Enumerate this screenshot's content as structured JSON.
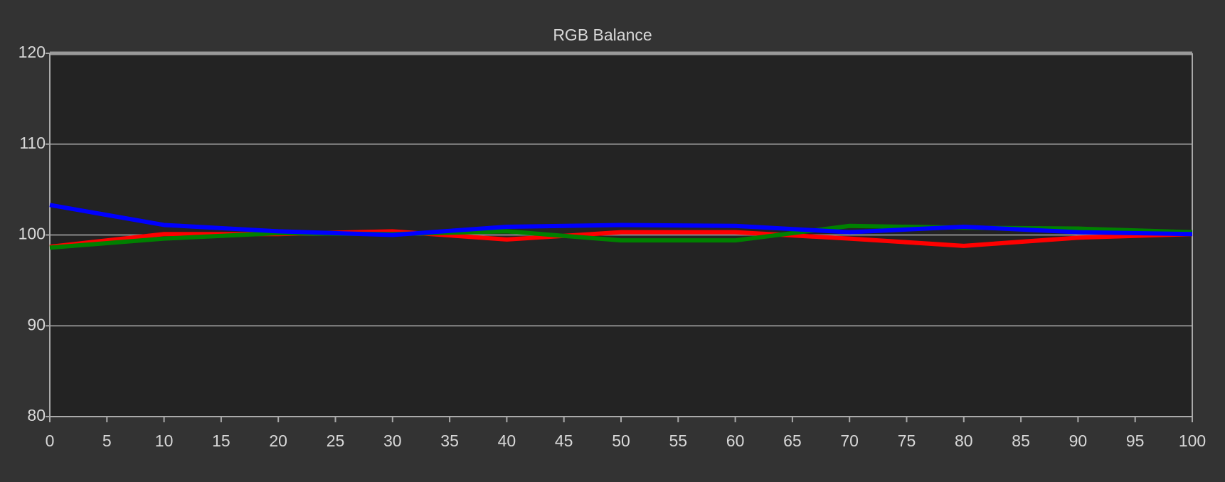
{
  "chart_data": {
    "type": "line",
    "title": "RGB Balance",
    "x": [
      0,
      10,
      20,
      30,
      40,
      50,
      60,
      70,
      80,
      90,
      100
    ],
    "series": [
      {
        "name": "Red",
        "color": "#ff0000",
        "values": [
          98.7,
          100.1,
          100.1,
          100.4,
          99.5,
          100.3,
          100.3,
          99.6,
          98.8,
          99.7,
          100.1
        ]
      },
      {
        "name": "Green",
        "color": "#008000",
        "values": [
          98.6,
          99.6,
          100.2,
          100.1,
          100.4,
          99.4,
          99.4,
          101.0,
          100.8,
          100.7,
          100.3
        ]
      },
      {
        "name": "Blue",
        "color": "#0000ff",
        "values": [
          103.3,
          101.1,
          100.4,
          100.0,
          100.9,
          101.1,
          101.0,
          100.3,
          100.9,
          100.3,
          100.1
        ]
      }
    ],
    "xlim": [
      0,
      100
    ],
    "xticks": [
      0,
      5,
      10,
      15,
      20,
      25,
      30,
      35,
      40,
      45,
      50,
      55,
      60,
      65,
      70,
      75,
      80,
      85,
      90,
      95,
      100
    ],
    "ylim": [
      80,
      120
    ],
    "yticks": [
      80,
      90,
      100,
      110,
      120
    ],
    "grid": true
  }
}
